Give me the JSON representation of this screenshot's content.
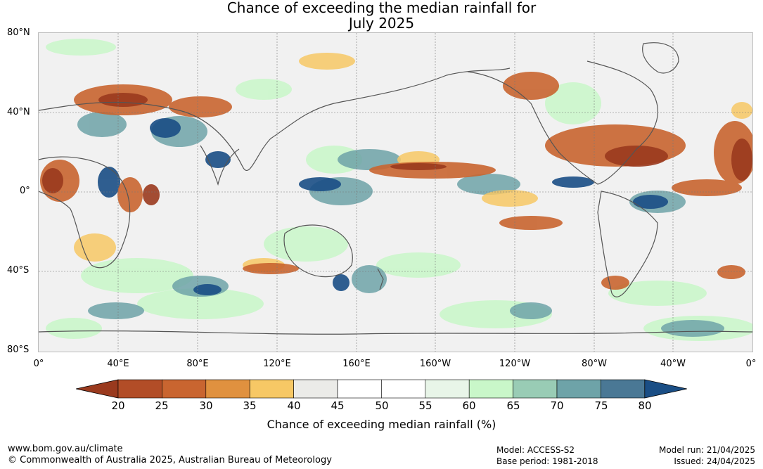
{
  "title": {
    "line1": "Chance of exceeding the median rainfall for",
    "line2": "July 2025"
  },
  "map": {
    "lat_labels": [
      "80°N",
      "40°N",
      "0°",
      "40°S",
      "80°S"
    ],
    "lon_labels": [
      "0°",
      "40°E",
      "80°E",
      "120°E",
      "160°E",
      "160°W",
      "120°W",
      "80°W",
      "40°W",
      "0°"
    ]
  },
  "colorbar": {
    "ticks": [
      "20",
      "25",
      "30",
      "35",
      "40",
      "45",
      "50",
      "55",
      "60",
      "65",
      "70",
      "75",
      "80"
    ],
    "colors": [
      "#9a3a1e",
      "#b24d27",
      "#c96530",
      "#e0913f",
      "#f7c865",
      "#ebebe8",
      "#ffffff",
      "#ffffff",
      "#e8f5e8",
      "#c9f7c9",
      "#99ccb5",
      "#6ea3a8",
      "#4a7895",
      "#1a4e85"
    ],
    "title": "Chance of exceeding median rainfall (%)"
  },
  "footer": {
    "url": "www.bom.gov.au/climate",
    "copyright": "© Commonwealth of Australia 2025, Australian Bureau of Meteorology",
    "model": "Model: ACCESS-S2",
    "base_period": "Base period: 1981-2018",
    "model_run": "Model run: 21/04/2025",
    "issued": "Issued: 24/04/2025"
  }
}
